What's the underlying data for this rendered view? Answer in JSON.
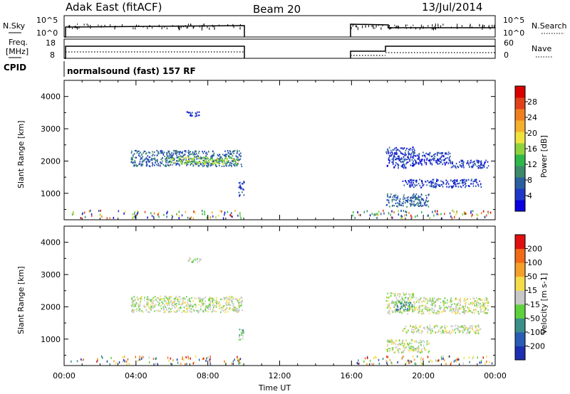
{
  "header": {
    "station": "Adak East (fitACF)",
    "beam": "Beam 20",
    "date": "13/Jul/2014"
  },
  "param_panels": {
    "nsky_label": "N.Sky",
    "nsky_ticks": [
      "10^5",
      "10^0"
    ],
    "nsearch_label": "N.Search",
    "nsearch_ticks": [
      "10^5",
      "10^0"
    ],
    "freq_label_1": "Freq.",
    "freq_label_2": "[MHz]",
    "freq_ticks": [
      "18",
      "8"
    ],
    "nave_label": "Nave",
    "nave_ticks": [
      "60",
      "0"
    ],
    "cpid_label": "CPID",
    "cpid_text": "normalsound (fast) 157 RF"
  },
  "x_axis": {
    "label": "Time UT",
    "ticks": [
      "00:00",
      "04:00",
      "08:00",
      "12:00",
      "16:00",
      "20:00",
      "00:00"
    ]
  },
  "chart_data": [
    {
      "type": "heatmap",
      "name": "power",
      "ylabel": "Slant Range [km]",
      "yticks": [
        1000,
        2000,
        3000,
        4000
      ],
      "ylim": [
        180,
        4500
      ],
      "xlim": [
        0,
        24
      ],
      "colorbar_label": "Power [dB]",
      "colorbar_ticks": [
        "28",
        "24",
        "20",
        "16",
        "12",
        "8",
        "4"
      ],
      "colorbar_colors": [
        "#0a00e0",
        "#1f38c8",
        "#2a60a0",
        "#3c8a6a",
        "#2fb84a",
        "#8ed23c",
        "#f0e23c",
        "#f5b02e",
        "#f07f1f",
        "#e0401a",
        "#d80000"
      ],
      "patches": [
        {
          "t0": 3.7,
          "t1": 9.9,
          "r0": 1850,
          "r1": 2350,
          "level": 2
        },
        {
          "t0": 5.6,
          "t1": 9.7,
          "r0": 1920,
          "r1": 2150,
          "level": 5
        },
        {
          "t0": 6.8,
          "t1": 7.6,
          "r0": 3400,
          "r1": 3550,
          "level": 1
        },
        {
          "t0": 9.7,
          "t1": 10.0,
          "r0": 900,
          "r1": 1400,
          "level": 1
        },
        {
          "t0": 17.9,
          "t1": 19.5,
          "r0": 1800,
          "r1": 2450,
          "level": 1
        },
        {
          "t0": 19.5,
          "t1": 21.5,
          "r0": 1900,
          "r1": 2300,
          "level": 1
        },
        {
          "t0": 21.5,
          "t1": 23.6,
          "r0": 1800,
          "r1": 2050,
          "level": 1
        },
        {
          "t0": 17.9,
          "t1": 20.3,
          "r0": 600,
          "r1": 1000,
          "level": 2
        },
        {
          "t0": 18.8,
          "t1": 23.2,
          "r0": 1200,
          "r1": 1450,
          "level": 1
        }
      ]
    },
    {
      "type": "heatmap",
      "name": "velocity",
      "ylabel": "Slant Range [km]",
      "yticks": [
        1000,
        2000,
        3000,
        4000
      ],
      "ylim": [
        180,
        4500
      ],
      "xlim": [
        0,
        24
      ],
      "colorbar_label": "Velocity [m s-1]",
      "colorbar_ticks": [
        "200",
        "100",
        "50",
        "15",
        "-15",
        "-50",
        "-100",
        "-200"
      ],
      "colorbar_colors": [
        "#1d2fb0",
        "#2a5cb5",
        "#3a8f88",
        "#5ed23c",
        "#c8c8c8",
        "#f5dc4a",
        "#f5a02a",
        "#f06a18",
        "#e01010"
      ],
      "patches": [
        {
          "t0": 3.7,
          "t1": 9.9,
          "r0": 1850,
          "r1": 2350,
          "level": 4
        },
        {
          "t0": 6.8,
          "t1": 7.6,
          "r0": 3400,
          "r1": 3550,
          "level": 4
        },
        {
          "t0": 9.7,
          "t1": 10.0,
          "r0": 950,
          "r1": 1350,
          "level": 3
        },
        {
          "t0": 17.9,
          "t1": 19.5,
          "r0": 1800,
          "r1": 2450,
          "level": 4
        },
        {
          "t0": 18.4,
          "t1": 19.4,
          "r0": 1900,
          "r1": 2200,
          "level": 2
        },
        {
          "t0": 19.5,
          "t1": 23.6,
          "r0": 1800,
          "r1": 2300,
          "level": 4
        },
        {
          "t0": 17.9,
          "t1": 20.3,
          "r0": 600,
          "r1": 1000,
          "level": 4
        },
        {
          "t0": 18.8,
          "t1": 23.2,
          "r0": 1200,
          "r1": 1450,
          "level": 4
        }
      ]
    }
  ]
}
